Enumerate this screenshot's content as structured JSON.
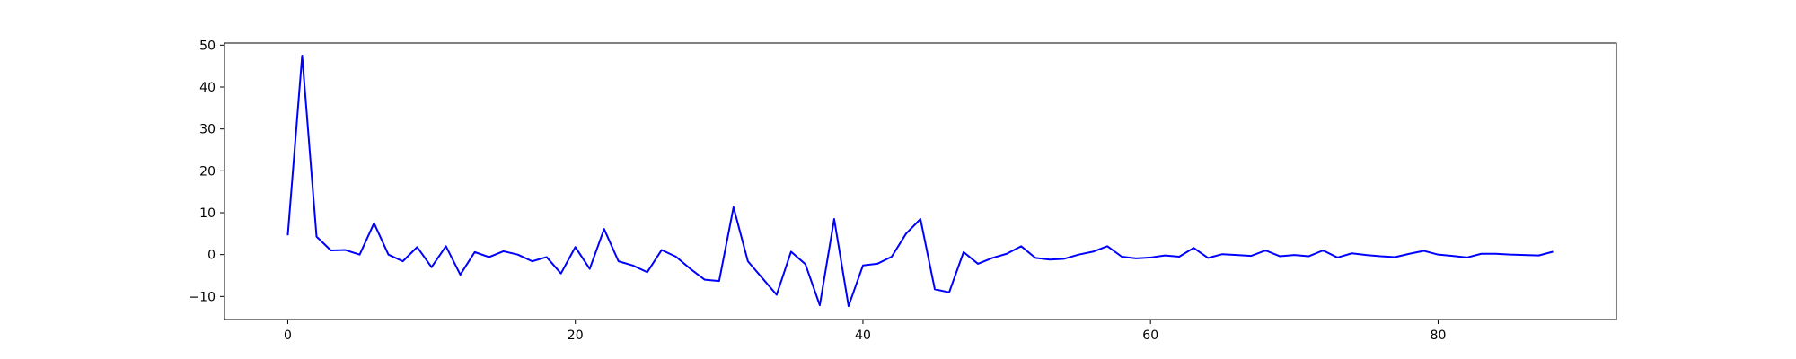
{
  "chart_data": {
    "type": "line",
    "title": "",
    "xlabel": "",
    "ylabel": "",
    "xlim": [
      -4.4,
      92.4
    ],
    "ylim": [
      -15.5,
      50.5
    ],
    "x_ticks": [
      0,
      20,
      40,
      60,
      80
    ],
    "y_ticks": [
      -10,
      0,
      10,
      20,
      30,
      40,
      50
    ],
    "x_tick_labels": [
      "0",
      "20",
      "40",
      "60",
      "80"
    ],
    "y_tick_labels": [
      "−10",
      "0",
      "10",
      "20",
      "30",
      "40",
      "50"
    ],
    "grid": false,
    "legend": "none",
    "series": [
      {
        "color": "#0000ff",
        "x": [
          0,
          1,
          2,
          3,
          4,
          5,
          6,
          7,
          8,
          9,
          10,
          11,
          12,
          13,
          14,
          15,
          16,
          17,
          18,
          19,
          20,
          21,
          22,
          23,
          24,
          25,
          26,
          27,
          28,
          29,
          30,
          31,
          32,
          33,
          34,
          35,
          36,
          37,
          38,
          39,
          40,
          41,
          42,
          43,
          44,
          45,
          46,
          47,
          48,
          49,
          50,
          51,
          52,
          53,
          54,
          55,
          56,
          57,
          58,
          59,
          60,
          61,
          62,
          63,
          64,
          65,
          66,
          67,
          68,
          69,
          70,
          71,
          72,
          73,
          74,
          75,
          76,
          77,
          78,
          79,
          80,
          81,
          82,
          83,
          84,
          85,
          86,
          87,
          88
        ],
        "values": [
          4.6,
          47.5,
          4.3,
          1.0,
          1.1,
          0.0,
          7.5,
          0.0,
          -1.6,
          1.8,
          -3.0,
          2.0,
          -4.8,
          0.6,
          -0.6,
          0.8,
          0.0,
          -1.6,
          -0.6,
          -4.5,
          1.8,
          -3.4,
          6.1,
          -1.6,
          -2.6,
          -4.2,
          1.1,
          -0.5,
          -3.4,
          -6.0,
          -6.3,
          11.3,
          -1.6,
          -5.6,
          -9.6,
          0.7,
          -2.3,
          -12.1,
          8.5,
          -12.3,
          -2.6,
          -2.2,
          -0.5,
          5.0,
          8.5,
          -8.3,
          -9.0,
          0.6,
          -2.2,
          -0.8,
          0.2,
          2.0,
          -0.8,
          -1.2,
          -1.0,
          0.0,
          0.7,
          2.0,
          -0.5,
          -0.9,
          -0.7,
          -0.2,
          -0.5,
          1.6,
          -0.8,
          0.1,
          -0.1,
          -0.3,
          1.0,
          -0.4,
          -0.1,
          -0.4,
          1.0,
          -0.7,
          0.3,
          -0.1,
          -0.4,
          -0.6,
          0.2,
          0.9,
          0.0,
          -0.3,
          -0.7,
          0.2,
          0.2,
          0.0,
          -0.1,
          -0.2,
          0.7
        ]
      }
    ]
  }
}
